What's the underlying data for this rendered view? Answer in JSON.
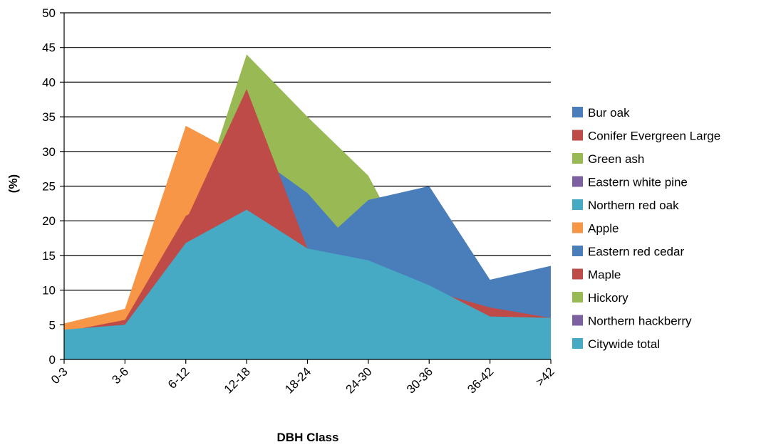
{
  "chart_data": {
    "type": "area",
    "xlabel": "DBH Class",
    "ylabel": "(%)",
    "ylim": [
      0,
      50
    ],
    "ytick_step": 5,
    "grid": "horizontal",
    "legend_position": "right",
    "categories": [
      "0-3",
      "3-6",
      "6-12",
      "12-18",
      "18-24",
      "24-30",
      "30-36",
      "36-42",
      ">42"
    ],
    "series": [
      {
        "name": "Bur oak",
        "color": "#4a7ebb",
        "values": [
          4,
          5,
          16,
          30,
          15,
          23,
          25,
          11.5,
          13.5
        ]
      },
      {
        "name": "Conifer Evergreen Large",
        "color": "#be4b48",
        "values": [
          4,
          5,
          20,
          39,
          16,
          14,
          10,
          6,
          6
        ]
      },
      {
        "name": "Green ash",
        "color": "#98b954",
        "values": [
          4.5,
          6,
          17,
          44,
          35,
          26.5,
          10,
          6,
          6
        ]
      },
      {
        "name": "Eastern white pine",
        "color": "#7d60a0",
        "values": [
          4,
          5,
          16,
          21,
          15,
          14,
          10,
          6,
          6
        ]
      },
      {
        "name": "Northern red oak",
        "color": "#46aac5",
        "values": [
          4,
          5,
          16,
          21,
          15,
          14,
          10,
          6,
          6
        ]
      },
      {
        "name": "Apple",
        "color": "#f79646",
        "values": [
          5.2,
          7.3,
          33.7,
          29,
          15,
          14,
          10,
          6,
          6
        ]
      },
      {
        "name": "Eastern red cedar",
        "color": "#4a7ebb",
        "values": [
          4,
          5,
          17,
          30.3,
          24,
          14,
          10,
          6,
          6
        ]
      },
      {
        "name": "Maple",
        "color": "#be4b48",
        "values": [
          4,
          5.7,
          20.7,
          25.7,
          15.5,
          14,
          10,
          7.5,
          6
        ]
      },
      {
        "name": "Hickory",
        "color": "#98b954",
        "values": [
          4,
          5,
          16,
          21,
          15,
          14,
          10,
          6,
          6
        ]
      },
      {
        "name": "Northern hackberry",
        "color": "#7d60a0",
        "values": [
          4.3,
          5.2,
          16.5,
          21,
          15.7,
          15.7,
          17.5,
          7.3,
          6
        ]
      },
      {
        "name": "Citywide total",
        "color": "#46aac5",
        "values": [
          4.3,
          5,
          16.8,
          21.6,
          16,
          14.3,
          10.7,
          6.2,
          6
        ]
      }
    ]
  }
}
